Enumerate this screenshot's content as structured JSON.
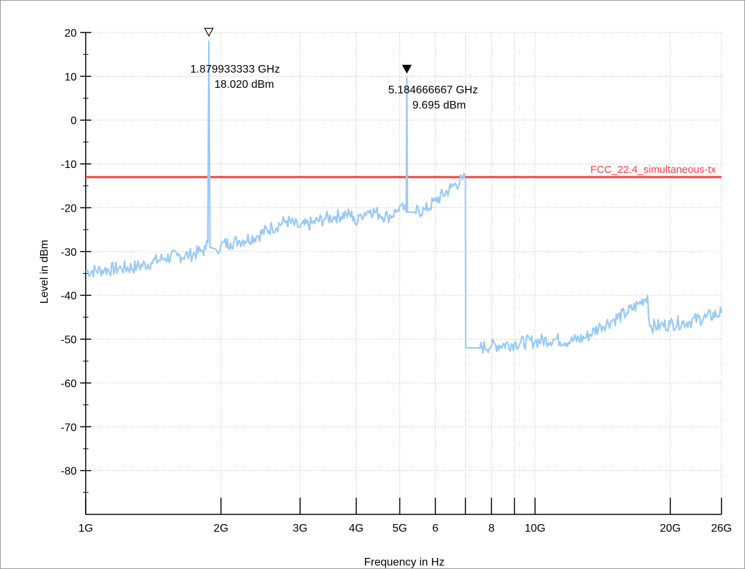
{
  "chart_data": {
    "type": "line",
    "xlabel": "Frequency in Hz",
    "ylabel": "Level in dBm",
    "x_scale": "log",
    "xlim_ghz": [
      1,
      26
    ],
    "ylim": [
      -90,
      20
    ],
    "grid": true,
    "x_ticks": [
      {
        "value_ghz": 1,
        "label": "1G"
      },
      {
        "value_ghz": 2,
        "label": "2G"
      },
      {
        "value_ghz": 3,
        "label": "3G"
      },
      {
        "value_ghz": 4,
        "label": "4G"
      },
      {
        "value_ghz": 5,
        "label": "5G"
      },
      {
        "value_ghz": 6,
        "label": "6"
      },
      {
        "value_ghz": 7,
        "label": ""
      },
      {
        "value_ghz": 8,
        "label": "8"
      },
      {
        "value_ghz": 9,
        "label": ""
      },
      {
        "value_ghz": 10,
        "label": "10G"
      },
      {
        "value_ghz": 20,
        "label": "20G"
      },
      {
        "value_ghz": 26,
        "label": "26G"
      }
    ],
    "y_ticks": [
      20,
      10,
      0,
      -10,
      -20,
      -30,
      -40,
      -50,
      -60,
      -70,
      -80
    ],
    "series": [
      {
        "color": "#99c9f5",
        "points_ghz_dbm": [
          [
            1.0,
            -34.5
          ],
          [
            1.1,
            -34.2
          ],
          [
            1.2,
            -33.8
          ],
          [
            1.3,
            -33.5
          ],
          [
            1.4,
            -32.5
          ],
          [
            1.5,
            -31.5
          ],
          [
            1.6,
            -31.0
          ],
          [
            1.7,
            -30.8
          ],
          [
            1.8,
            -30.0
          ],
          [
            1.85,
            -29.5
          ],
          [
            1.87,
            -28.0
          ],
          [
            1.8799,
            18.02
          ],
          [
            1.89,
            -29.0
          ],
          [
            1.95,
            -29.5
          ],
          [
            2.0,
            -28.5
          ],
          [
            2.1,
            -28.0
          ],
          [
            2.2,
            -27.5
          ],
          [
            2.4,
            -26.5
          ],
          [
            2.6,
            -24.5
          ],
          [
            2.8,
            -23.0
          ],
          [
            3.0,
            -24.5
          ],
          [
            3.2,
            -23.5
          ],
          [
            3.4,
            -22.5
          ],
          [
            3.6,
            -22.0
          ],
          [
            3.8,
            -21.5
          ],
          [
            3.95,
            -22.0
          ],
          [
            4.0,
            -24.0
          ],
          [
            4.1,
            -21.5
          ],
          [
            4.3,
            -20.5
          ],
          [
            4.5,
            -21.5
          ],
          [
            4.7,
            -22.0
          ],
          [
            4.9,
            -21.0
          ],
          [
            5.0,
            -19.5
          ],
          [
            5.1,
            -20.5
          ],
          [
            5.17,
            -21.0
          ],
          [
            5.1847,
            9.695
          ],
          [
            5.2,
            -21.0
          ],
          [
            5.4,
            -21.0
          ],
          [
            5.7,
            -20.5
          ],
          [
            6.0,
            -18.5
          ],
          [
            6.5,
            -15.5
          ],
          [
            6.9,
            -13.5
          ],
          [
            7.0,
            -13.5
          ],
          [
            7.01,
            -52.0
          ],
          [
            7.5,
            -52.0
          ],
          [
            8.0,
            -51.5
          ],
          [
            9.0,
            -51.0
          ],
          [
            10.0,
            -50.5
          ],
          [
            11.0,
            -50.0
          ],
          [
            12.0,
            -50.5
          ],
          [
            13.0,
            -49.5
          ],
          [
            14.0,
            -47.0
          ],
          [
            15.0,
            -45.5
          ],
          [
            16.0,
            -44.0
          ],
          [
            17.0,
            -42.0
          ],
          [
            17.8,
            -40.0
          ],
          [
            17.9,
            -45.0
          ],
          [
            18.0,
            -47.0
          ],
          [
            19.0,
            -47.0
          ],
          [
            20.0,
            -46.5
          ],
          [
            22.0,
            -46.0
          ],
          [
            24.0,
            -45.0
          ],
          [
            26.0,
            -44.0
          ]
        ]
      }
    ],
    "limit_line": {
      "name": "FCC_22.4_simultaneous-tx",
      "level_dbm": -13,
      "color": "#ff3b3b"
    },
    "markers": [
      {
        "freq_ghz": 1.879933333,
        "freq_label": "1.879933333 GHz",
        "level_label": "18.020 dBm",
        "symbol": "hollow-triangle"
      },
      {
        "freq_ghz": 5.184666667,
        "freq_label": "5.184666667 GHz",
        "level_label": "9.695 dBm",
        "symbol": "filled-triangle"
      }
    ]
  }
}
